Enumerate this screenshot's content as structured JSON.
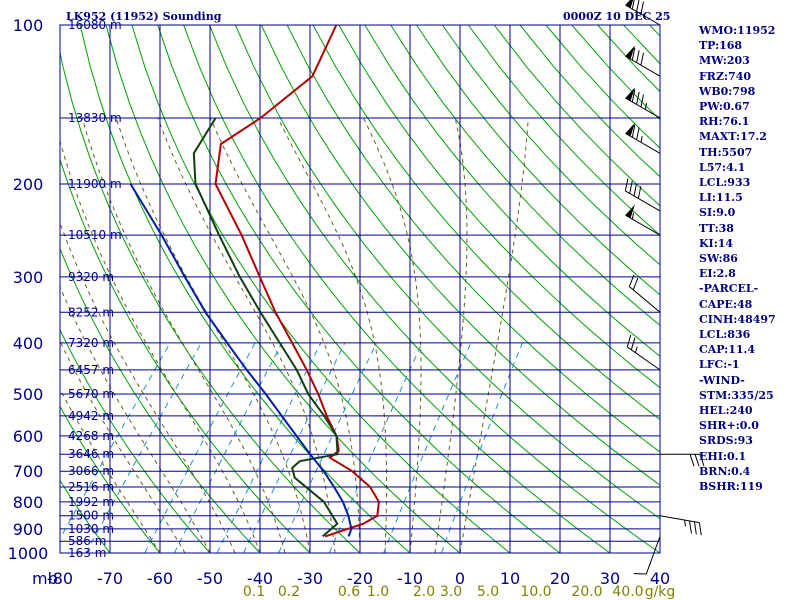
{
  "header": {
    "station": "LK952 (11952) Sounding",
    "time": "0000Z 10 DEC 25"
  },
  "stats": [
    "WMO:11952",
    "TP:168",
    "MW:203",
    "FRZ:740",
    "WB0:798",
    "PW:0.67",
    "RH:76.1",
    "MAXT:17.2",
    "TH:5507",
    "L57:4.1",
    "LCL:933",
    "LI:11.5",
    "SI:9.0",
    "TT:38",
    "KI:14",
    "SW:86",
    "EI:2.8",
    "-PARCEL-",
    "CAPE:48",
    "CINH:48497",
    "LCL:836",
    "CAP:11.4",
    "LFC:-1",
    "-WIND-",
    "STM:335/25",
    "HEL:240",
    "SHR+:0.0",
    "SRDS:93",
    "EHI:0.1",
    "BRN:0.4",
    "BSHR:119"
  ],
  "colors": {
    "grid": "#00008b",
    "dry_adiabat": "#00a000",
    "moist_adiabat": "#6b5a20",
    "mixing_ratio": "#2090d0",
    "temperature": "#b00000",
    "dewpoint": "#104010",
    "parcel": "#0020a0",
    "wind": "#000000",
    "label": "#000080",
    "mixing_label": "#808000"
  },
  "chart_data": {
    "type": "skew-t",
    "title": "LK952 (11952) Sounding",
    "pressure_unit": "mb",
    "pressure_ticks": [
      100,
      200,
      300,
      400,
      500,
      600,
      700,
      800,
      900,
      1000
    ],
    "temperature_ticks": [
      -80,
      -70,
      -60,
      -50,
      -40,
      -30,
      -20,
      -10,
      0,
      10,
      20,
      30,
      40
    ],
    "temperature_tick_labels": [
      "-80",
      "-70",
      "-60",
      "-50",
      "-40",
      "-30",
      "-20",
      "-10",
      "0",
      "10",
      "20",
      "30",
      "40"
    ],
    "x_axis_prefix": "mb",
    "height_labels": [
      {
        "p": 100,
        "label": "16080 m"
      },
      {
        "p": 150,
        "label": "13830 m"
      },
      {
        "p": 200,
        "label": "11900 m"
      },
      {
        "p": 250,
        "label": "10510 m"
      },
      {
        "p": 300,
        "label": "9320 m"
      },
      {
        "p": 350,
        "label": "8252 m"
      },
      {
        "p": 400,
        "label": "7320 m"
      },
      {
        "p": 450,
        "label": "6457 m"
      },
      {
        "p": 500,
        "label": "5670 m"
      },
      {
        "p": 550,
        "label": "4942 m"
      },
      {
        "p": 600,
        "label": "4268 m"
      },
      {
        "p": 650,
        "label": "3646 m"
      },
      {
        "p": 700,
        "label": "3066 m"
      },
      {
        "p": 750,
        "label": "2516 m"
      },
      {
        "p": 800,
        "label": "1992 m"
      },
      {
        "p": 850,
        "label": "1500 m"
      },
      {
        "p": 900,
        "label": "1030 m"
      },
      {
        "p": 950,
        "label": "586 m"
      },
      {
        "p": 1000,
        "label": "163 m"
      }
    ],
    "mixing_ratio_labels": [
      "0.1",
      "0.2",
      "0.6",
      "1.0",
      "2.0",
      "3.0",
      "5.0",
      "10.0",
      "20.0",
      "40.0"
    ],
    "mixing_ratio_unit": "g/kg",
    "series": [
      {
        "name": "temperature",
        "points": [
          {
            "p": 100,
            "t": -65
          },
          {
            "p": 125,
            "t": -62
          },
          {
            "p": 150,
            "t": -66
          },
          {
            "p": 168,
            "t": -70
          },
          {
            "p": 200,
            "t": -65
          },
          {
            "p": 250,
            "t": -52
          },
          {
            "p": 300,
            "t": -42
          },
          {
            "p": 350,
            "t": -33.5
          },
          {
            "p": 400,
            "t": -25.5
          },
          {
            "p": 450,
            "t": -18.5
          },
          {
            "p": 500,
            "t": -12.5
          },
          {
            "p": 550,
            "t": -7.5
          },
          {
            "p": 600,
            "t": -2.5
          },
          {
            "p": 640,
            "t": 0.2
          },
          {
            "p": 660,
            "t": -0.5
          },
          {
            "p": 700,
            "t": 6
          },
          {
            "p": 750,
            "t": 12
          },
          {
            "p": 800,
            "t": 16
          },
          {
            "p": 850,
            "t": 17.8
          },
          {
            "p": 880,
            "t": 16.2
          },
          {
            "p": 930,
            "t": 10.5
          }
        ]
      },
      {
        "name": "dewpoint",
        "points": [
          {
            "p": 150,
            "t": -75
          },
          {
            "p": 175,
            "t": -74
          },
          {
            "p": 200,
            "t": -69
          },
          {
            "p": 250,
            "t": -56.5
          },
          {
            "p": 300,
            "t": -46
          },
          {
            "p": 350,
            "t": -36.5
          },
          {
            "p": 400,
            "t": -28
          },
          {
            "p": 450,
            "t": -20.5
          },
          {
            "p": 500,
            "t": -14.5
          },
          {
            "p": 550,
            "t": -8
          },
          {
            "p": 600,
            "t": -2.5
          },
          {
            "p": 650,
            "t": 0.5
          },
          {
            "p": 670,
            "t": -6
          },
          {
            "p": 690,
            "t": -6.5
          },
          {
            "p": 720,
            "t": -4.5
          },
          {
            "p": 800,
            "t": 5
          },
          {
            "p": 880,
            "t": 11
          },
          {
            "p": 930,
            "t": 10
          }
        ]
      },
      {
        "name": "parcel",
        "points": [
          {
            "p": 200,
            "t": -82
          },
          {
            "p": 250,
            "t": -68
          },
          {
            "p": 300,
            "t": -57
          },
          {
            "p": 350,
            "t": -47.5
          },
          {
            "p": 400,
            "t": -38.5
          },
          {
            "p": 450,
            "t": -30.5
          },
          {
            "p": 500,
            "t": -23
          },
          {
            "p": 550,
            "t": -16.5
          },
          {
            "p": 600,
            "t": -10.5
          },
          {
            "p": 650,
            "t": -5
          },
          {
            "p": 700,
            "t": 0.3
          },
          {
            "p": 750,
            "t": 4.8
          },
          {
            "p": 800,
            "t": 8.8
          },
          {
            "p": 850,
            "t": 12
          },
          {
            "p": 900,
            "t": 14.6
          },
          {
            "p": 930,
            "t": 15.2
          }
        ]
      }
    ],
    "wind_barbs": [
      {
        "p": 100,
        "dir": 300,
        "kt": 80
      },
      {
        "p": 125,
        "dir": 300,
        "kt": 80
      },
      {
        "p": 150,
        "dir": 300,
        "kt": 85
      },
      {
        "p": 175,
        "dir": 300,
        "kt": 75
      },
      {
        "p": 225,
        "dir": 300,
        "kt": 40
      },
      {
        "p": 250,
        "dir": 300,
        "kt": 55
      },
      {
        "p": 350,
        "dir": 310,
        "kt": 20
      },
      {
        "p": 450,
        "dir": 305,
        "kt": 25
      },
      {
        "p": 650,
        "dir": 90,
        "kt": 30
      },
      {
        "p": 850,
        "dir": 100,
        "kt": 35
      },
      {
        "p": 930,
        "dir": 200,
        "kt": 10
      }
    ]
  }
}
